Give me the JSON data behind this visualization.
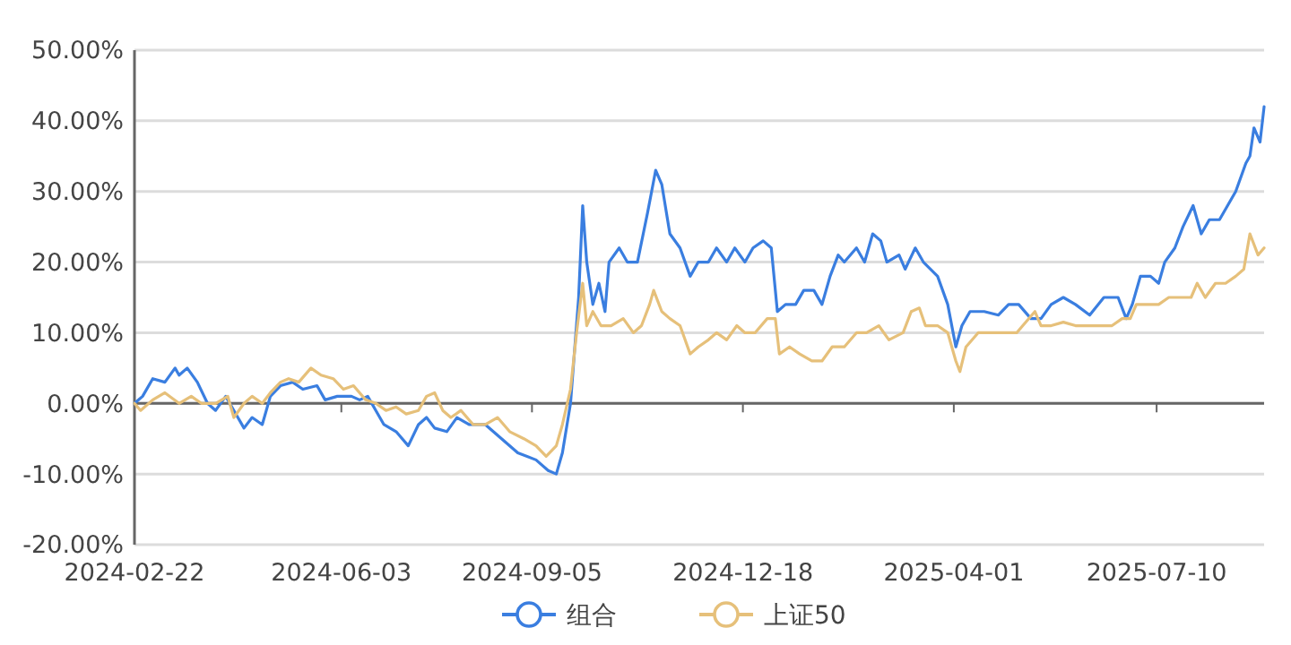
{
  "chart_data": {
    "type": "line",
    "xlim": [
      "2024-02-22",
      "2025-09-01"
    ],
    "xticks": [
      {
        "value": "2024-02-22",
        "label": "2024-02-22"
      },
      {
        "value": "2024-06-03",
        "label": "2024-06-03"
      },
      {
        "value": "2024-09-05",
        "label": "2024-09-05"
      },
      {
        "value": "2024-12-18",
        "label": "2024-12-18"
      },
      {
        "value": "2025-04-01",
        "label": "2025-04-01"
      },
      {
        "value": "2025-07-10",
        "label": "2025-07-10"
      }
    ],
    "ylim": [
      -20,
      50
    ],
    "yticks": [
      {
        "value": -20,
        "label": "-20.00%"
      },
      {
        "value": -10,
        "label": "-10.00%"
      },
      {
        "value": 0,
        "label": "0.00%"
      },
      {
        "value": 10,
        "label": "10.00%"
      },
      {
        "value": 20,
        "label": "20.00%"
      },
      {
        "value": 30,
        "label": "30.00%"
      },
      {
        "value": 40,
        "label": "40.00%"
      },
      {
        "value": 50,
        "label": "50.00%"
      }
    ],
    "grid": "y",
    "legend": "bottom",
    "marker": "none",
    "line_style": "solid",
    "series": [
      {
        "name": "组合",
        "color": "#3a7ee0",
        "x": [
          "2024-02-22",
          "2024-02-26",
          "2024-03-02",
          "2024-03-08",
          "2024-03-13",
          "2024-03-15",
          "2024-03-19",
          "2024-03-24",
          "2024-03-29",
          "2024-04-02",
          "2024-04-07",
          "2024-04-11",
          "2024-04-16",
          "2024-04-20",
          "2024-04-25",
          "2024-04-29",
          "2024-05-04",
          "2024-05-10",
          "2024-05-15",
          "2024-05-22",
          "2024-05-26",
          "2024-06-01",
          "2024-06-08",
          "2024-06-12",
          "2024-06-16",
          "2024-06-20",
          "2024-06-24",
          "2024-06-30",
          "2024-07-06",
          "2024-07-11",
          "2024-07-15",
          "2024-07-19",
          "2024-07-25",
          "2024-07-30",
          "2024-08-05",
          "2024-08-13",
          "2024-08-21",
          "2024-08-29",
          "2024-09-07",
          "2024-09-13",
          "2024-09-17",
          "2024-09-20",
          "2024-09-24",
          "2024-09-28",
          "2024-09-30",
          "2024-10-02",
          "2024-10-05",
          "2024-10-08",
          "2024-10-11",
          "2024-10-13",
          "2024-10-18",
          "2024-10-22",
          "2024-10-27",
          "2024-11-01",
          "2024-11-03",
          "2024-11-05",
          "2024-11-08",
          "2024-11-12",
          "2024-11-17",
          "2024-11-22",
          "2024-11-26",
          "2024-12-01",
          "2024-12-05",
          "2024-12-10",
          "2024-12-14",
          "2024-12-19",
          "2024-12-23",
          "2024-12-28",
          "2025-01-01",
          "2025-01-04",
          "2025-01-08",
          "2025-01-13",
          "2025-01-17",
          "2025-01-22",
          "2025-01-26",
          "2025-01-30",
          "2025-02-03",
          "2025-02-06",
          "2025-02-12",
          "2025-02-16",
          "2025-02-20",
          "2025-02-24",
          "2025-02-27",
          "2025-03-05",
          "2025-03-08",
          "2025-03-13",
          "2025-03-17",
          "2025-03-24",
          "2025-03-29",
          "2025-04-02",
          "2025-04-05",
          "2025-04-09",
          "2025-04-16",
          "2025-04-23",
          "2025-04-28",
          "2025-05-03",
          "2025-05-09",
          "2025-05-14",
          "2025-05-19",
          "2025-05-25",
          "2025-05-31",
          "2025-06-07",
          "2025-06-14",
          "2025-06-21",
          "2025-06-25",
          "2025-06-28",
          "2025-07-02",
          "2025-07-07",
          "2025-07-11",
          "2025-07-14",
          "2025-07-19",
          "2025-07-23",
          "2025-07-28",
          "2025-08-01",
          "2025-08-05",
          "2025-08-10",
          "2025-08-14",
          "2025-08-18",
          "2025-08-23",
          "2025-08-25",
          "2025-08-27",
          "2025-08-30",
          "2025-09-01"
        ],
        "values": [
          0,
          1,
          3.5,
          3,
          5,
          4,
          5,
          3,
          0,
          -1,
          1,
          -1,
          -3.5,
          -2,
          -3,
          1,
          2.5,
          3,
          2,
          2.5,
          0.5,
          1,
          1,
          0.5,
          1,
          -1,
          -3,
          -4,
          -6,
          -3,
          -2,
          -3.5,
          -4,
          -2,
          -3,
          -3,
          -5,
          -7,
          -8,
          -9.5,
          -10,
          -7,
          0,
          15,
          28,
          20,
          14,
          17,
          13,
          20,
          22,
          20,
          20,
          27,
          30,
          33,
          31,
          24,
          22,
          18,
          20,
          20,
          22,
          20,
          22,
          20,
          22,
          23,
          22,
          13,
          14,
          14,
          16,
          16,
          14,
          18,
          21,
          20,
          22,
          20,
          24,
          23,
          20,
          21,
          19,
          22,
          20,
          18,
          14,
          8,
          11,
          13,
          13,
          12.5,
          14,
          14,
          12,
          12,
          14,
          15,
          14,
          12.5,
          15,
          15,
          12,
          14,
          18,
          18,
          17,
          20,
          22,
          25,
          28,
          24,
          26,
          26,
          28,
          30,
          34,
          35,
          39,
          37,
          42
        ]
      },
      {
        "name": "上证50",
        "color": "#e6c07a",
        "x": [
          "2024-02-22",
          "2024-02-25",
          "2024-03-02",
          "2024-03-08",
          "2024-03-15",
          "2024-03-21",
          "2024-03-26",
          "2024-04-02",
          "2024-04-08",
          "2024-04-11",
          "2024-04-16",
          "2024-04-20",
          "2024-04-25",
          "2024-04-29",
          "2024-05-04",
          "2024-05-08",
          "2024-05-13",
          "2024-05-19",
          "2024-05-24",
          "2024-05-30",
          "2024-06-04",
          "2024-06-09",
          "2024-06-15",
          "2024-06-20",
          "2024-06-25",
          "2024-06-30",
          "2024-07-05",
          "2024-07-11",
          "2024-07-15",
          "2024-07-19",
          "2024-07-23",
          "2024-07-27",
          "2024-08-01",
          "2024-08-07",
          "2024-08-13",
          "2024-08-19",
          "2024-08-25",
          "2024-09-01",
          "2024-09-07",
          "2024-09-12",
          "2024-09-17",
          "2024-09-20",
          "2024-09-24",
          "2024-09-27",
          "2024-09-30",
          "2024-10-02",
          "2024-10-05",
          "2024-10-09",
          "2024-10-14",
          "2024-10-20",
          "2024-10-25",
          "2024-10-29",
          "2024-11-02",
          "2024-11-04",
          "2024-11-08",
          "2024-11-12",
          "2024-11-17",
          "2024-11-22",
          "2024-11-26",
          "2024-12-01",
          "2024-12-05",
          "2024-12-10",
          "2024-12-15",
          "2024-12-19",
          "2024-12-24",
          "2024-12-30",
          "2025-01-03",
          "2025-01-05",
          "2025-01-10",
          "2025-01-15",
          "2025-01-21",
          "2025-01-26",
          "2025-01-31",
          "2025-02-06",
          "2025-02-12",
          "2025-02-17",
          "2025-02-23",
          "2025-02-28",
          "2025-03-07",
          "2025-03-11",
          "2025-03-15",
          "2025-03-18",
          "2025-03-24",
          "2025-03-29",
          "2025-04-02",
          "2025-04-04",
          "2025-04-07",
          "2025-04-13",
          "2025-04-19",
          "2025-04-26",
          "2025-05-02",
          "2025-05-05",
          "2025-05-11",
          "2025-05-14",
          "2025-05-19",
          "2025-05-25",
          "2025-05-31",
          "2025-06-07",
          "2025-06-13",
          "2025-06-18",
          "2025-06-23",
          "2025-06-27",
          "2025-06-30",
          "2025-07-05",
          "2025-07-11",
          "2025-07-16",
          "2025-07-21",
          "2025-07-27",
          "2025-07-30",
          "2025-08-03",
          "2025-08-08",
          "2025-08-13",
          "2025-08-18",
          "2025-08-22",
          "2025-08-25",
          "2025-08-29",
          "2025-09-01"
        ],
        "values": [
          0,
          -1,
          0.5,
          1.5,
          0,
          1,
          0,
          0,
          1,
          -2,
          0,
          1,
          0,
          1.5,
          3,
          3.5,
          3,
          5,
          4,
          3.5,
          2,
          2.5,
          0.5,
          0,
          -1,
          -0.5,
          -1.5,
          -1,
          1,
          1.5,
          -1,
          -2,
          -1,
          -3,
          -3,
          -2,
          -4,
          -5,
          -6,
          -7.5,
          -6,
          -3,
          2,
          10,
          17,
          11,
          13,
          11,
          11,
          12,
          10,
          11,
          14,
          16,
          13,
          12,
          11,
          7,
          8,
          9,
          10,
          9,
          11,
          10,
          10,
          12,
          12,
          7,
          8,
          7,
          6,
          6,
          8,
          8,
          10,
          10,
          11,
          9,
          10,
          13,
          13.5,
          11,
          11,
          10,
          6,
          4.5,
          8,
          10,
          10,
          10,
          10,
          11,
          13,
          11,
          11,
          11.5,
          11,
          11,
          11,
          11,
          12,
          12,
          14,
          14,
          14,
          15,
          15,
          15,
          17,
          15,
          17,
          17,
          18,
          19,
          24,
          21,
          22
        ]
      }
    ]
  }
}
